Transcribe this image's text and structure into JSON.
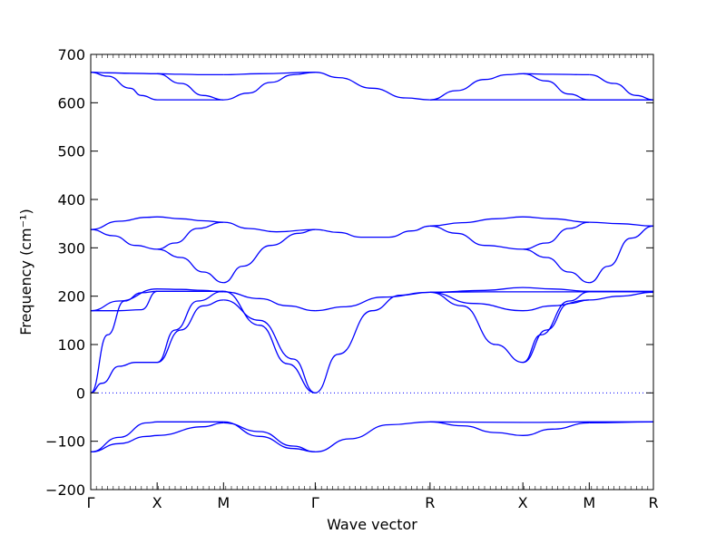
{
  "chart_data": {
    "type": "line",
    "xlabel": "Wave vector",
    "ylabel": "Frequency (cm⁻¹)",
    "ylim": [
      -200,
      700
    ],
    "yticks": [
      -200,
      -100,
      0,
      100,
      200,
      300,
      400,
      500,
      600,
      700
    ],
    "xticks": [
      {
        "label": "Γ",
        "position": 0
      },
      {
        "label": "X",
        "position": 0.118
      },
      {
        "label": "M",
        "position": 0.236
      },
      {
        "label": "Γ",
        "position": 0.399
      },
      {
        "label": "R",
        "position": 0.603
      },
      {
        "label": "X",
        "position": 0.768
      },
      {
        "label": "M",
        "position": 0.886
      },
      {
        "label": "R",
        "position": 1.0
      }
    ],
    "xlim": [
      0,
      1.0
    ],
    "zero_line": {
      "value": 0,
      "style": "dotted"
    },
    "line_color": "#0000ff",
    "bands": [
      {
        "x": [
          0,
          0.03,
          0.07,
          0.118,
          0.16,
          0.2,
          0.236
        ],
        "y": [
          663,
          662,
          661,
          660,
          659,
          658,
          658
        ]
      },
      {
        "x": [
          0,
          0.03,
          0.07,
          0.09,
          0.118,
          0.15,
          0.2,
          0.236
        ],
        "y": [
          663,
          655,
          630,
          615,
          606,
          606,
          606,
          606
        ]
      },
      {
        "x": [
          0.118,
          0.16,
          0.2,
          0.236
        ],
        "y": [
          660,
          640,
          615,
          606
        ]
      },
      {
        "x": [
          0.236,
          0.28,
          0.32,
          0.36,
          0.399
        ],
        "y": [
          606,
          620,
          642,
          658,
          663
        ]
      },
      {
        "x": [
          0.236,
          0.3,
          0.399
        ],
        "y": [
          658,
          660,
          663
        ]
      },
      {
        "x": [
          0.399,
          0.44,
          0.5,
          0.56,
          0.603
        ],
        "y": [
          663,
          652,
          630,
          610,
          606
        ]
      },
      {
        "x": [
          0.603,
          0.65,
          0.7,
          0.74,
          0.768
        ],
        "y": [
          606,
          625,
          648,
          658,
          660
        ]
      },
      {
        "x": [
          0.603,
          0.7,
          0.768,
          0.886,
          1.0
        ],
        "y": [
          606,
          606,
          606,
          606,
          606
        ]
      },
      {
        "x": [
          0.768,
          0.82,
          0.886
        ],
        "y": [
          660,
          659,
          658
        ]
      },
      {
        "x": [
          0.768,
          0.81,
          0.85,
          0.886
        ],
        "y": [
          660,
          645,
          618,
          606
        ]
      },
      {
        "x": [
          0.886,
          0.93,
          0.97,
          1.0
        ],
        "y": [
          658,
          640,
          615,
          606
        ]
      },
      {
        "x": [
          0.886,
          1.0
        ],
        "y": [
          606,
          606
        ]
      },
      {
        "x": [
          0,
          0.05,
          0.1,
          0.118,
          0.16,
          0.2,
          0.236
        ],
        "y": [
          338,
          355,
          363,
          364,
          360,
          356,
          353
        ]
      },
      {
        "x": [
          0,
          0.04,
          0.08,
          0.118
        ],
        "y": [
          338,
          325,
          305,
          297
        ]
      },
      {
        "x": [
          0.118,
          0.15,
          0.19,
          0.236
        ],
        "y": [
          297,
          310,
          340,
          353
        ]
      },
      {
        "x": [
          0.118,
          0.16,
          0.2,
          0.236
        ],
        "y": [
          297,
          280,
          250,
          228
        ]
      },
      {
        "x": [
          0.236,
          0.27,
          0.32,
          0.37,
          0.399
        ],
        "y": [
          228,
          262,
          305,
          330,
          338
        ]
      },
      {
        "x": [
          0.236,
          0.28,
          0.33,
          0.399
        ],
        "y": [
          353,
          340,
          333,
          338
        ]
      },
      {
        "x": [
          0.399,
          0.44,
          0.48,
          0.53,
          0.57,
          0.603
        ],
        "y": [
          338,
          332,
          322,
          322,
          335,
          345
        ]
      },
      {
        "x": [
          0.603,
          0.66,
          0.72,
          0.768,
          0.82,
          0.886
        ],
        "y": [
          345,
          352,
          360,
          364,
          360,
          353
        ]
      },
      {
        "x": [
          0.603,
          0.65,
          0.7,
          0.768
        ],
        "y": [
          345,
          330,
          305,
          297
        ]
      },
      {
        "x": [
          0.768,
          0.81,
          0.85,
          0.886
        ],
        "y": [
          297,
          310,
          340,
          353
        ]
      },
      {
        "x": [
          0.768,
          0.81,
          0.85,
          0.886
        ],
        "y": [
          297,
          280,
          250,
          228
        ]
      },
      {
        "x": [
          0.886,
          0.92,
          0.96,
          1.0
        ],
        "y": [
          228,
          262,
          320,
          345
        ]
      },
      {
        "x": [
          0.886,
          0.94,
          1.0
        ],
        "y": [
          353,
          350,
          345
        ]
      },
      {
        "x": [
          0,
          0.05,
          0.118,
          0.16,
          0.2,
          0.236
        ],
        "y": [
          170,
          190,
          215,
          214,
          212,
          209
        ]
      },
      {
        "x": [
          0,
          0.05,
          0.09,
          0.118,
          0.18,
          0.236
        ],
        "y": [
          170,
          170,
          172,
          210,
          210,
          210
        ]
      },
      {
        "x": [
          0,
          0.03,
          0.06,
          0.09,
          0.118
        ],
        "y": [
          0,
          120,
          190,
          207,
          210
        ]
      },
      {
        "x": [
          0,
          0.02,
          0.05,
          0.08,
          0.118
        ],
        "y": [
          0,
          20,
          55,
          63,
          63
        ]
      },
      {
        "x": [
          0.118,
          0.15,
          0.19,
          0.236
        ],
        "y": [
          63,
          130,
          190,
          210
        ]
      },
      {
        "x": [
          0.118,
          0.16,
          0.2,
          0.236
        ],
        "y": [
          63,
          130,
          180,
          192
        ]
      },
      {
        "x": [
          0.236,
          0.3,
          0.35,
          0.399
        ],
        "y": [
          210,
          140,
          60,
          0
        ]
      },
      {
        "x": [
          0.236,
          0.3,
          0.36,
          0.399
        ],
        "y": [
          192,
          150,
          70,
          0
        ]
      },
      {
        "x": [
          0.236,
          0.3,
          0.35,
          0.399
        ],
        "y": [
          209,
          195,
          180,
          170
        ]
      },
      {
        "x": [
          0.399,
          0.44,
          0.5,
          0.55,
          0.603
        ],
        "y": [
          0,
          80,
          170,
          202,
          208
        ]
      },
      {
        "x": [
          0.399,
          0.45,
          0.52,
          0.603
        ],
        "y": [
          170,
          178,
          198,
          208
        ]
      },
      {
        "x": [
          0.603,
          0.7,
          0.768,
          0.82,
          0.886,
          1.0
        ],
        "y": [
          208,
          212,
          218,
          215,
          210,
          210
        ]
      },
      {
        "x": [
          0.603,
          0.7,
          0.768,
          0.886,
          1.0
        ],
        "y": [
          208,
          209,
          209,
          209,
          209
        ]
      },
      {
        "x": [
          0.603,
          0.66,
          0.72,
          0.768
        ],
        "y": [
          208,
          180,
          100,
          63
        ]
      },
      {
        "x": [
          0.603,
          0.68,
          0.768,
          0.82,
          0.886
        ],
        "y": [
          208,
          185,
          170,
          180,
          192
        ]
      },
      {
        "x": [
          0.768,
          0.81,
          0.85,
          0.886
        ],
        "y": [
          63,
          130,
          185,
          192
        ]
      },
      {
        "x": [
          0.768,
          0.8,
          0.85,
          0.886
        ],
        "y": [
          63,
          120,
          190,
          209
        ]
      },
      {
        "x": [
          0.886,
          0.94,
          1.0
        ],
        "y": [
          192,
          200,
          208
        ]
      },
      {
        "x": [
          0,
          0.05,
          0.1,
          0.118,
          0.236
        ],
        "y": [
          -122,
          -92,
          -62,
          -60,
          -60
        ]
      },
      {
        "x": [
          0,
          0.05,
          0.1,
          0.118,
          0.2,
          0.236
        ],
        "y": [
          -122,
          -105,
          -90,
          -88,
          -70,
          -62
        ]
      },
      {
        "x": [
          0.236,
          0.3,
          0.36,
          0.399
        ],
        "y": [
          -62,
          -80,
          -110,
          -122
        ]
      },
      {
        "x": [
          0.236,
          0.3,
          0.36,
          0.399
        ],
        "y": [
          -60,
          -90,
          -115,
          -122
        ]
      },
      {
        "x": [
          0.399,
          0.46,
          0.53,
          0.603,
          0.768,
          0.886,
          1.0
        ],
        "y": [
          -122,
          -95,
          -66,
          -60,
          -61,
          -60,
          -60
        ]
      },
      {
        "x": [
          0.603,
          0.66,
          0.72,
          0.768,
          0.82,
          0.886
        ],
        "y": [
          -60,
          -68,
          -82,
          -88,
          -75,
          -62
        ]
      },
      {
        "x": [
          0.886,
          1.0
        ],
        "y": [
          -62,
          -60
        ]
      }
    ]
  }
}
